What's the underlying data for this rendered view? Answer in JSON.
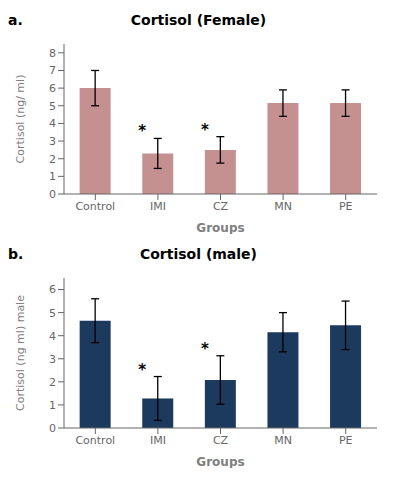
{
  "chart_data": [
    {
      "type": "bar",
      "panel_label": "a.",
      "title": "Cortisol (Female)",
      "categories": [
        "Control",
        "IMI",
        "CZ",
        "MN",
        "PE"
      ],
      "values": [
        6.0,
        2.3,
        2.5,
        5.15,
        5.15
      ],
      "errors": [
        1.0,
        0.85,
        0.75,
        0.75,
        0.75
      ],
      "annotations": [
        {
          "category": "IMI",
          "text": "*"
        },
        {
          "category": "CZ",
          "text": "*"
        }
      ],
      "ylabel": "Cortisol (ng/ ml)",
      "xlabel": "Groups",
      "ylim": [
        0,
        8.5
      ],
      "yticks": [
        0,
        1,
        2,
        3,
        4,
        5,
        6,
        7,
        8
      ],
      "color": "#c49090",
      "grid": false
    },
    {
      "type": "bar",
      "panel_label": "b.",
      "title": "Cortisol (male)",
      "categories": [
        "Control",
        "IMI",
        "CZ",
        "MN",
        "PE"
      ],
      "values": [
        4.65,
        1.28,
        2.08,
        4.15,
        4.45
      ],
      "errors": [
        0.95,
        0.95,
        1.05,
        0.85,
        1.05
      ],
      "annotations": [
        {
          "category": "IMI",
          "text": "*"
        },
        {
          "category": "CZ",
          "text": "*"
        }
      ],
      "ylabel": "Cortisol (ng ml) male",
      "xlabel": "Groups",
      "ylim": [
        0,
        6.5
      ],
      "yticks": [
        0,
        1,
        2,
        3,
        4,
        5,
        6
      ],
      "color": "#1b3a5e",
      "grid": false
    }
  ]
}
